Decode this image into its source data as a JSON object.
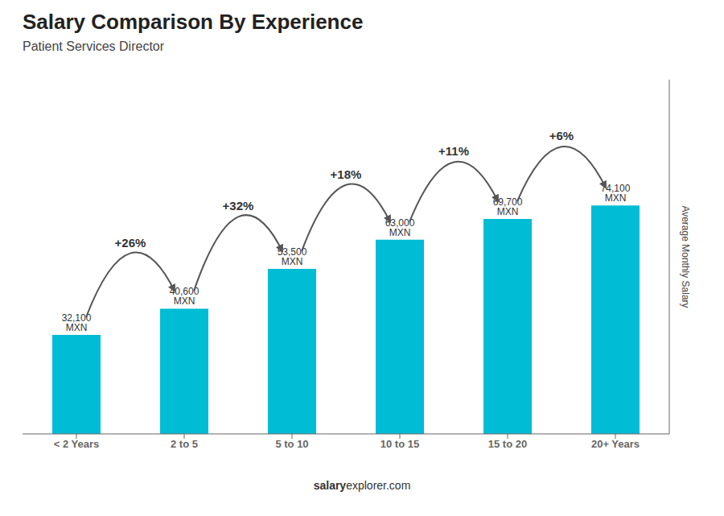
{
  "chart_data": {
    "type": "bar",
    "title": "Salary Comparison By Experience",
    "subtitle": "Patient Services Director",
    "categories": [
      "< 2 Years",
      "2 to 5",
      "5 to 10",
      "10 to 15",
      "15 to 20",
      "20+ Years"
    ],
    "values": [
      32100,
      40600,
      53500,
      63000,
      69700,
      74100
    ],
    "value_labels": [
      "32,100 MXN",
      "40,600 MXN",
      "53,500 MXN",
      "63,000 MXN",
      "69,700 MXN",
      "74,100 MXN"
    ],
    "data_labels": true,
    "color": "#00bcd4",
    "ylabel": "Average Monthly Salary",
    "ylim": [
      0,
      114855
    ],
    "tick_labels": "x",
    "grid": false,
    "annotations": [
      "+26%",
      "+32%",
      "+18%",
      "+11%",
      "+6%"
    ],
    "watermark": [
      "salary",
      "explorer.com"
    ]
  }
}
